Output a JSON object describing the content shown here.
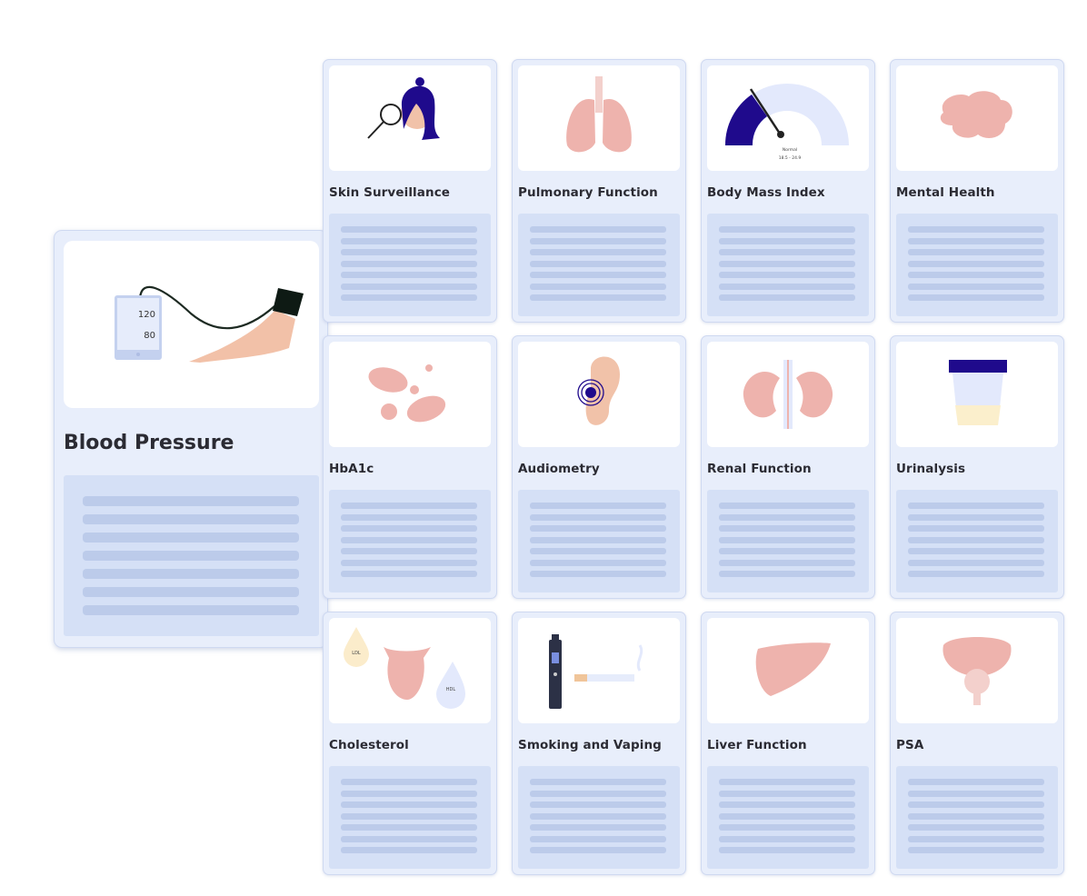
{
  "featured": {
    "title": "Blood Pressure",
    "systolic": "120",
    "diastolic": "80",
    "icon": "blood-pressure-monitor-icon"
  },
  "cards": [
    {
      "title": "Skin Surveillance",
      "icon": "skin-magnifier-icon"
    },
    {
      "title": "Pulmonary Function",
      "icon": "lungs-icon"
    },
    {
      "title": "Body Mass Index",
      "icon": "gauge-icon",
      "gauge_label": "Normal",
      "gauge_range": "18.5 - 24.9"
    },
    {
      "title": "Mental Health",
      "icon": "brain-icon"
    },
    {
      "title": "HbA1c",
      "icon": "blood-cells-icon"
    },
    {
      "title": "Audiometry",
      "icon": "ear-icon"
    },
    {
      "title": "Renal Function",
      "icon": "kidneys-icon"
    },
    {
      "title": "Urinalysis",
      "icon": "urine-sample-icon"
    },
    {
      "title": "Cholesterol",
      "icon": "heart-drops-icon",
      "drop1": "LDL",
      "drop2": "HDL"
    },
    {
      "title": "Smoking and Vaping",
      "icon": "cigarette-vape-icon"
    },
    {
      "title": "Liver Function",
      "icon": "liver-icon"
    },
    {
      "title": "PSA",
      "icon": "prostate-icon"
    }
  ],
  "colors": {
    "card_bg": "#e8eefb",
    "placeholder": "#d5e0f6",
    "accent": "#1f0a8c",
    "organ": "#eeb3ad"
  }
}
